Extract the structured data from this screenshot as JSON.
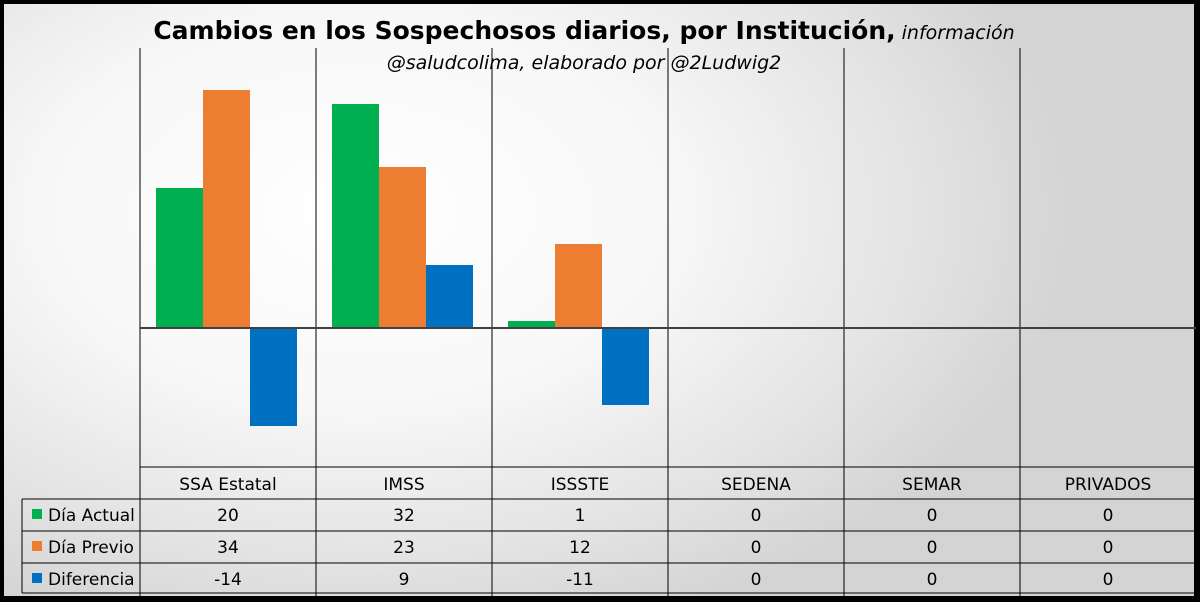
{
  "chart_data": {
    "type": "bar",
    "title": "Cambios en los Sospechosos diarios, por Institución,",
    "title_suffix": "información",
    "subtitle": "@saludcolima, elaborado por @2Ludwig2",
    "categories": [
      "SSA Estatal",
      "IMSS",
      "ISSSTE",
      "SEDENA",
      "SEMAR",
      "PRIVADOS"
    ],
    "series": [
      {
        "name": "Día Actual",
        "color": "#00b050",
        "values": [
          20,
          32,
          1,
          0,
          0,
          0
        ]
      },
      {
        "name": "Día Previo",
        "color": "#ed7d31",
        "values": [
          34,
          23,
          12,
          0,
          0,
          0
        ]
      },
      {
        "name": "Diferencia",
        "color": "#0070c0",
        "values": [
          -14,
          9,
          -11,
          0,
          0,
          0
        ]
      }
    ],
    "ylim": [
      -20,
      35
    ],
    "legend": "data-table",
    "grid": false
  }
}
